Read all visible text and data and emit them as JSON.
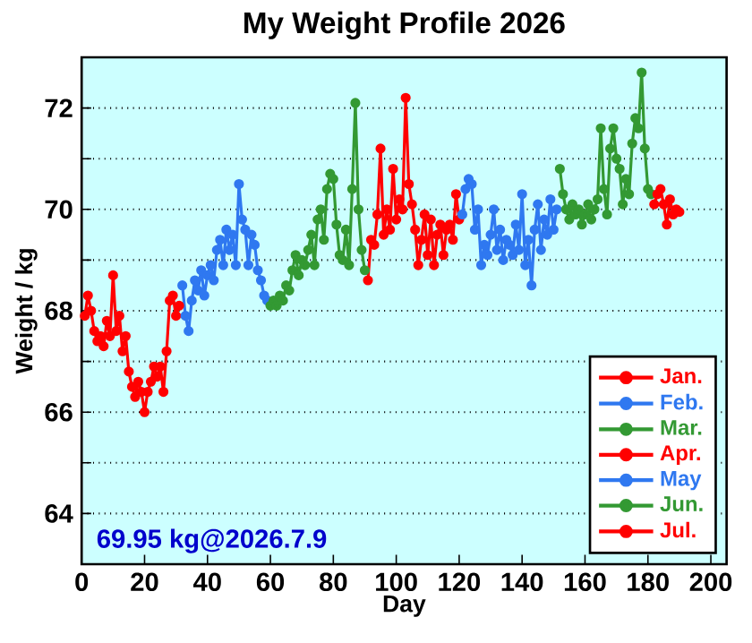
{
  "chart_data": {
    "type": "line",
    "title": "My Weight Profile 2026",
    "xlabel": "Day",
    "ylabel": "Weight / kg",
    "xlim": [
      0,
      205
    ],
    "ylim": [
      63,
      73
    ],
    "xticks": [
      0,
      20,
      40,
      60,
      80,
      100,
      120,
      140,
      160,
      180,
      200
    ],
    "yticks": [
      {
        "value": 63,
        "label": null
      },
      64,
      {
        "value": 65,
        "label": null
      },
      66,
      {
        "value": 67,
        "label": null
      },
      68,
      {
        "value": 69,
        "label": null
      },
      70,
      {
        "value": 71,
        "label": null
      },
      72
    ],
    "grid": "y",
    "legend": "bottom right",
    "marker": "circle",
    "line_style": "solid",
    "annotations": [
      "69.95 kg@2026.7.9"
    ],
    "series": [
      {
        "name": "Jan.",
        "color": "#ff0000",
        "x": [
          1,
          2,
          3,
          4,
          5,
          6,
          7,
          8,
          9,
          10,
          11,
          12,
          13,
          14,
          15,
          16,
          17,
          18,
          19,
          20,
          21,
          22,
          23,
          24,
          25,
          26,
          27,
          28,
          29,
          30,
          31
        ],
        "values": [
          67.9,
          68.3,
          68.0,
          67.6,
          67.4,
          67.5,
          67.3,
          67.8,
          67.5,
          68.7,
          67.6,
          67.9,
          67.2,
          67.5,
          66.8,
          66.5,
          66.3,
          66.6,
          66.4,
          66.0,
          66.4,
          66.6,
          66.9,
          66.7,
          66.9,
          66.4,
          67.2,
          68.2,
          68.3,
          67.9,
          68.1
        ]
      },
      {
        "name": "Feb.",
        "color": "#2f78f0",
        "x": [
          32,
          33,
          34,
          35,
          36,
          37,
          38,
          39,
          40,
          41,
          42,
          43,
          44,
          45,
          46,
          47,
          48,
          49,
          50,
          51,
          52,
          53,
          54,
          55,
          56,
          57,
          58,
          59
        ],
        "values": [
          68.5,
          67.9,
          67.6,
          68.2,
          68.6,
          68.4,
          68.8,
          68.3,
          68.7,
          68.9,
          68.6,
          69.2,
          69.4,
          68.9,
          69.6,
          69.2,
          69.5,
          68.9,
          70.5,
          69.8,
          69.6,
          68.9,
          69.5,
          69.3,
          68.8,
          68.6,
          68.3,
          68.2
        ]
      },
      {
        "name": "Mar.",
        "color": "#339933",
        "x": [
          60,
          61,
          62,
          63,
          64,
          65,
          66,
          67,
          68,
          69,
          70,
          71,
          72,
          73,
          74,
          75,
          76,
          77,
          78,
          79,
          80,
          81,
          82,
          83,
          84,
          85,
          86,
          87,
          88,
          89,
          90
        ],
        "values": [
          68.1,
          68.2,
          68.1,
          68.3,
          68.2,
          68.5,
          68.4,
          68.8,
          69.1,
          68.7,
          69.0,
          68.9,
          69.2,
          69.5,
          68.9,
          69.8,
          70.0,
          69.4,
          70.4,
          70.7,
          70.6,
          69.7,
          69.1,
          69.0,
          69.6,
          68.9,
          70.4,
          72.1,
          70.0,
          69.2,
          68.8
        ]
      },
      {
        "name": "Apr.",
        "color": "#ff0000",
        "x": [
          91,
          92,
          93,
          94,
          95,
          96,
          97,
          98,
          99,
          100,
          101,
          102,
          103,
          104,
          105,
          106,
          107,
          108,
          109,
          110,
          111,
          112,
          113,
          114,
          115,
          116,
          117,
          118,
          119,
          120
        ],
        "values": [
          68.6,
          69.4,
          69.3,
          69.9,
          71.2,
          69.5,
          70.0,
          69.6,
          70.8,
          69.8,
          70.2,
          70.0,
          72.2,
          70.5,
          70.1,
          69.6,
          68.9,
          69.4,
          69.9,
          69.1,
          69.8,
          68.9,
          69.5,
          69.7,
          69.1,
          69.6,
          69.7,
          69.4,
          70.3,
          69.8
        ]
      },
      {
        "name": "May",
        "color": "#2f78f0",
        "x": [
          121,
          122,
          123,
          124,
          125,
          126,
          127,
          128,
          129,
          130,
          131,
          132,
          133,
          134,
          135,
          136,
          137,
          138,
          139,
          140,
          141,
          142,
          143,
          144,
          145,
          146,
          147,
          148,
          149,
          150,
          151
        ],
        "values": [
          69.9,
          70.4,
          70.6,
          70.5,
          69.6,
          70.0,
          68.9,
          69.3,
          69.1,
          69.5,
          70.0,
          69.2,
          69.6,
          69.0,
          69.4,
          69.3,
          69.1,
          69.7,
          69.2,
          70.3,
          68.9,
          69.4,
          68.5,
          69.6,
          70.1,
          69.2,
          69.8,
          69.5,
          70.2,
          69.6,
          70.0
        ]
      },
      {
        "name": "Jun.",
        "color": "#339933",
        "x": [
          152,
          153,
          154,
          155,
          156,
          157,
          158,
          159,
          160,
          161,
          162,
          163,
          164,
          165,
          166,
          167,
          168,
          169,
          170,
          171,
          172,
          173,
          174,
          175,
          176,
          177,
          178,
          179,
          180,
          181
        ],
        "values": [
          70.8,
          70.3,
          70.0,
          69.8,
          70.1,
          69.9,
          70.0,
          69.7,
          69.9,
          70.1,
          69.8,
          70.0,
          70.2,
          71.6,
          70.4,
          69.9,
          71.2,
          71.6,
          71.0,
          70.8,
          70.1,
          70.6,
          70.3,
          71.3,
          71.8,
          71.6,
          72.7,
          71.2,
          70.4,
          70.3
        ]
      },
      {
        "name": "Jul.",
        "color": "#ff0000",
        "x": [
          182,
          183,
          184,
          185,
          186,
          187,
          188,
          189,
          190
        ],
        "values": [
          70.1,
          70.3,
          70.4,
          70.1,
          69.7,
          70.2,
          69.9,
          70.0,
          69.95
        ]
      }
    ]
  }
}
